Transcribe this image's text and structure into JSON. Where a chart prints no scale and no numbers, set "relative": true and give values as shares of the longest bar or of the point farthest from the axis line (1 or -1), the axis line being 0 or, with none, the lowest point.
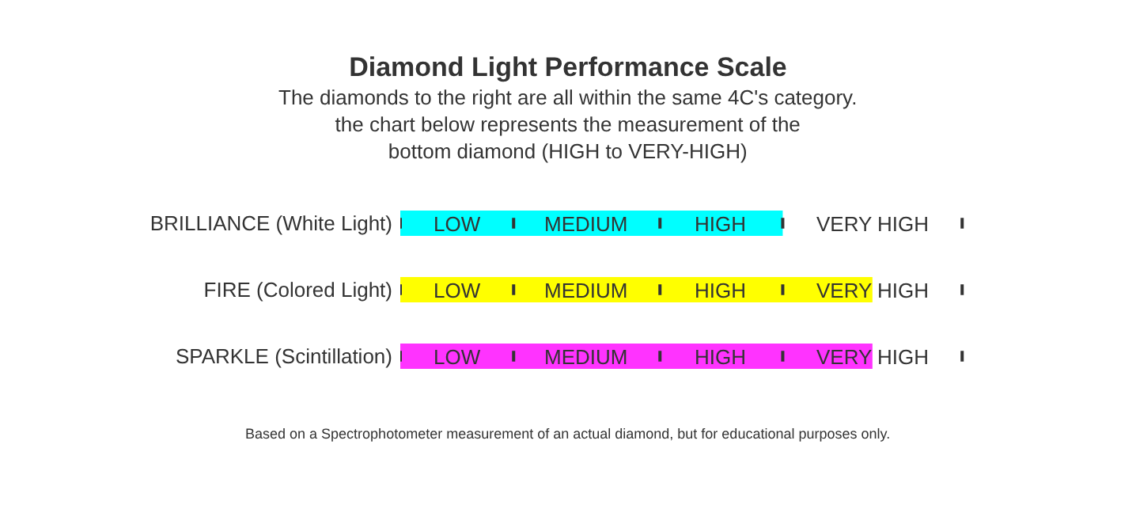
{
  "chart_data": {
    "type": "bar",
    "orientation": "horizontal",
    "relative": true,
    "title": "Diamond Light Performance Scale",
    "subtitle": "The diamonds to the right are all within the same 4C's category.\nthe chart below represents the measurement of the\nbottom diamond (HIGH to VERY-HIGH)",
    "categories": [
      "BRILLIANCE (White Light)",
      "FIRE (Colored Light)",
      "SPARKLE (Scintillation)"
    ],
    "values": [
      0.81,
      1,
      1
    ],
    "colors": [
      "#00ffff",
      "#ffff00",
      "#ff33ff"
    ],
    "ref_lines": [
      {
        "axis": "x",
        "value": 0
      },
      {
        "axis": "x",
        "value": 0.24
      },
      {
        "axis": "x",
        "value": 0.55
      },
      {
        "axis": "x",
        "value": 0.81
      },
      {
        "axis": "x",
        "value": 1.19
      }
    ],
    "annotations": [
      "LOW",
      "MEDIUM",
      "HIGH",
      "VERY HIGH",
      "LOW",
      "MEDIUM",
      "HIGH",
      "VERY HIGH",
      "LOW",
      "MEDIUM",
      "HIGH",
      "VERY HIGH",
      "Based on a Spectrophotometer measurement of an actual diamond, but for educational purposes only."
    ]
  }
}
